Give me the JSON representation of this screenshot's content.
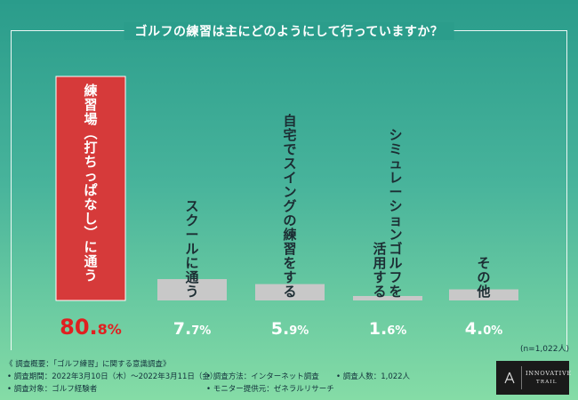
{
  "colors": {
    "highlight_bar": "#d63a3a",
    "bar": "#c8c8c8",
    "highlight_value": "#e02020",
    "value": "#ffffff",
    "label": "#1c2d33"
  },
  "chart_data": {
    "type": "bar",
    "title": "ゴルフの練習は主にどのようにして行っていますか？",
    "unit": "%",
    "categories": [
      "練習場︵打ちっぱなし︶に通う",
      "スクールに通う",
      "自宅でスイングの練習をする",
      "シミュレーションゴルフを活用する",
      "その他"
    ],
    "category_columns": [
      [
        "練習場︵打ちっぱなし︶に通う"
      ],
      [
        "スクールに通う"
      ],
      [
        "自宅でスイングの練習をする"
      ],
      [
        "シミュレーションゴルフを",
        "活用する"
      ],
      [
        "その他"
      ]
    ],
    "values": [
      80.8,
      7.7,
      5.9,
      1.6,
      4.0
    ],
    "value_labels": [
      {
        "int": "80.",
        "dec": "8%"
      },
      {
        "int": "7.",
        "dec": "7%"
      },
      {
        "int": "5.",
        "dec": "9%"
      },
      {
        "int": "1.",
        "dec": "6%"
      },
      {
        "int": "4.",
        "dec": "0%"
      }
    ],
    "ylim": [
      0,
      80.8
    ],
    "highlight_index": 0,
    "sample_note": "(n=1,022人)"
  },
  "footer": {
    "overview": "《 調査概要：「ゴルフ練習」に関する意識調査》",
    "period": "• 調査期間：2022年3月10日（木）～2022年3月11日（金）",
    "method": "• 調査方法：インターネット調査",
    "count": "• 調査人数：1,022人",
    "target": "• 調査対象：ゴルフ経験者",
    "monitor": "• モニター提供元：ゼネラルリサーチ"
  },
  "logo": {
    "line1": "INNOVATIVE",
    "line2": "TRAIL"
  }
}
